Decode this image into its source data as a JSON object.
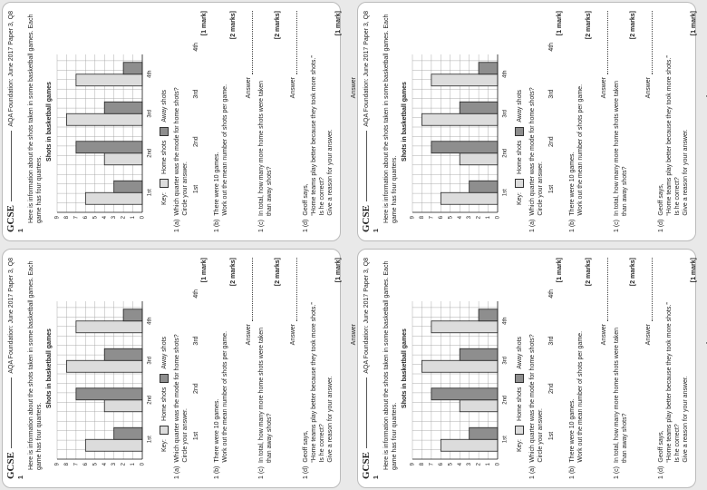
{
  "header": {
    "brand": "GCSE",
    "source": "AQA Foundation: June 2017 Paper 3, Q8"
  },
  "question_number": "1",
  "intro": "Here is information about the shots taken in some basketball games. Each game has four quarters.",
  "chart_data": {
    "type": "bar",
    "title": "Shots in basketball games",
    "categories": [
      "1st",
      "2nd",
      "3rd",
      "4th"
    ],
    "series": [
      {
        "name": "Home shots",
        "color": "#dcdcdc",
        "values": [
          6,
          4,
          8,
          7
        ]
      },
      {
        "name": "Away shots",
        "color": "#8e8e8e",
        "values": [
          3,
          7,
          4,
          2
        ]
      }
    ],
    "ylim": [
      0,
      9
    ],
    "yticks": [
      0,
      1,
      2,
      3,
      4,
      5,
      6,
      7,
      8,
      9
    ],
    "grid": true,
    "legend_title": "Key:"
  },
  "questions": [
    {
      "label": "1 (a)",
      "lines": [
        "Which quarter was the mode for home shots?",
        "Circle your answer."
      ],
      "marks": "[1 mark]",
      "options": [
        "1st",
        "2nd",
        "3rd",
        "4th"
      ]
    },
    {
      "label": "1 (b)",
      "lines": [
        "There were 10 games.",
        "Work out the mean number of shots per game."
      ],
      "marks": "[2 marks]",
      "answer": "Answer"
    },
    {
      "label": "1 (c)",
      "lines": [
        "In total, how many more home shots were taken",
        "than away shots?"
      ],
      "marks": "[2 marks]",
      "answer": "Answer"
    },
    {
      "label": "1 (d)",
      "lines": [
        "Geoff says,",
        "“Home teams play better because they took more shots.”",
        "Is he correct?",
        "Give a reason for your answer."
      ],
      "marks": "[1 mark]",
      "answer": "Answer"
    }
  ]
}
